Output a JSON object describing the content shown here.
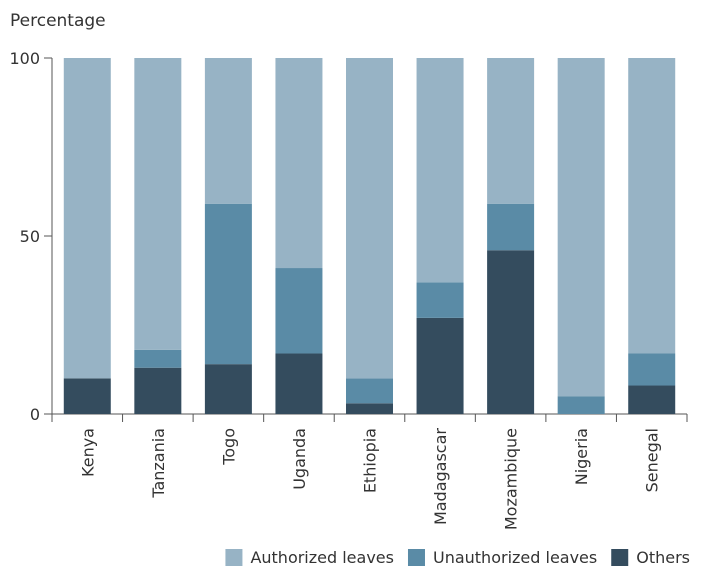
{
  "chart_data": {
    "type": "bar",
    "stacked": true,
    "ylabel": "Percentage",
    "ylim": [
      0,
      100
    ],
    "yticks": [
      0,
      50,
      100
    ],
    "categories": [
      "Kenya",
      "Tanzania",
      "Togo",
      "Uganda",
      "Ethiopia",
      "Madagascar",
      "Mozambique",
      "Nigeria",
      "Senegal"
    ],
    "series": [
      {
        "name": "Others",
        "color": "#344c5e",
        "values": [
          10,
          13,
          14,
          17,
          3,
          27,
          46,
          0,
          8
        ]
      },
      {
        "name": "Unauthorized leaves",
        "color": "#5a8ba6",
        "values": [
          0,
          5,
          45,
          24,
          7,
          10,
          13,
          5,
          9
        ]
      },
      {
        "name": "Authorized leaves",
        "color": "#97b3c5",
        "values": [
          90,
          82,
          41,
          59,
          90,
          63,
          41,
          95,
          83
        ]
      }
    ],
    "legend": {
      "placement": "bottom-right",
      "order": [
        "Authorized leaves",
        "Unauthorized leaves",
        "Others"
      ]
    },
    "grid": false
  }
}
